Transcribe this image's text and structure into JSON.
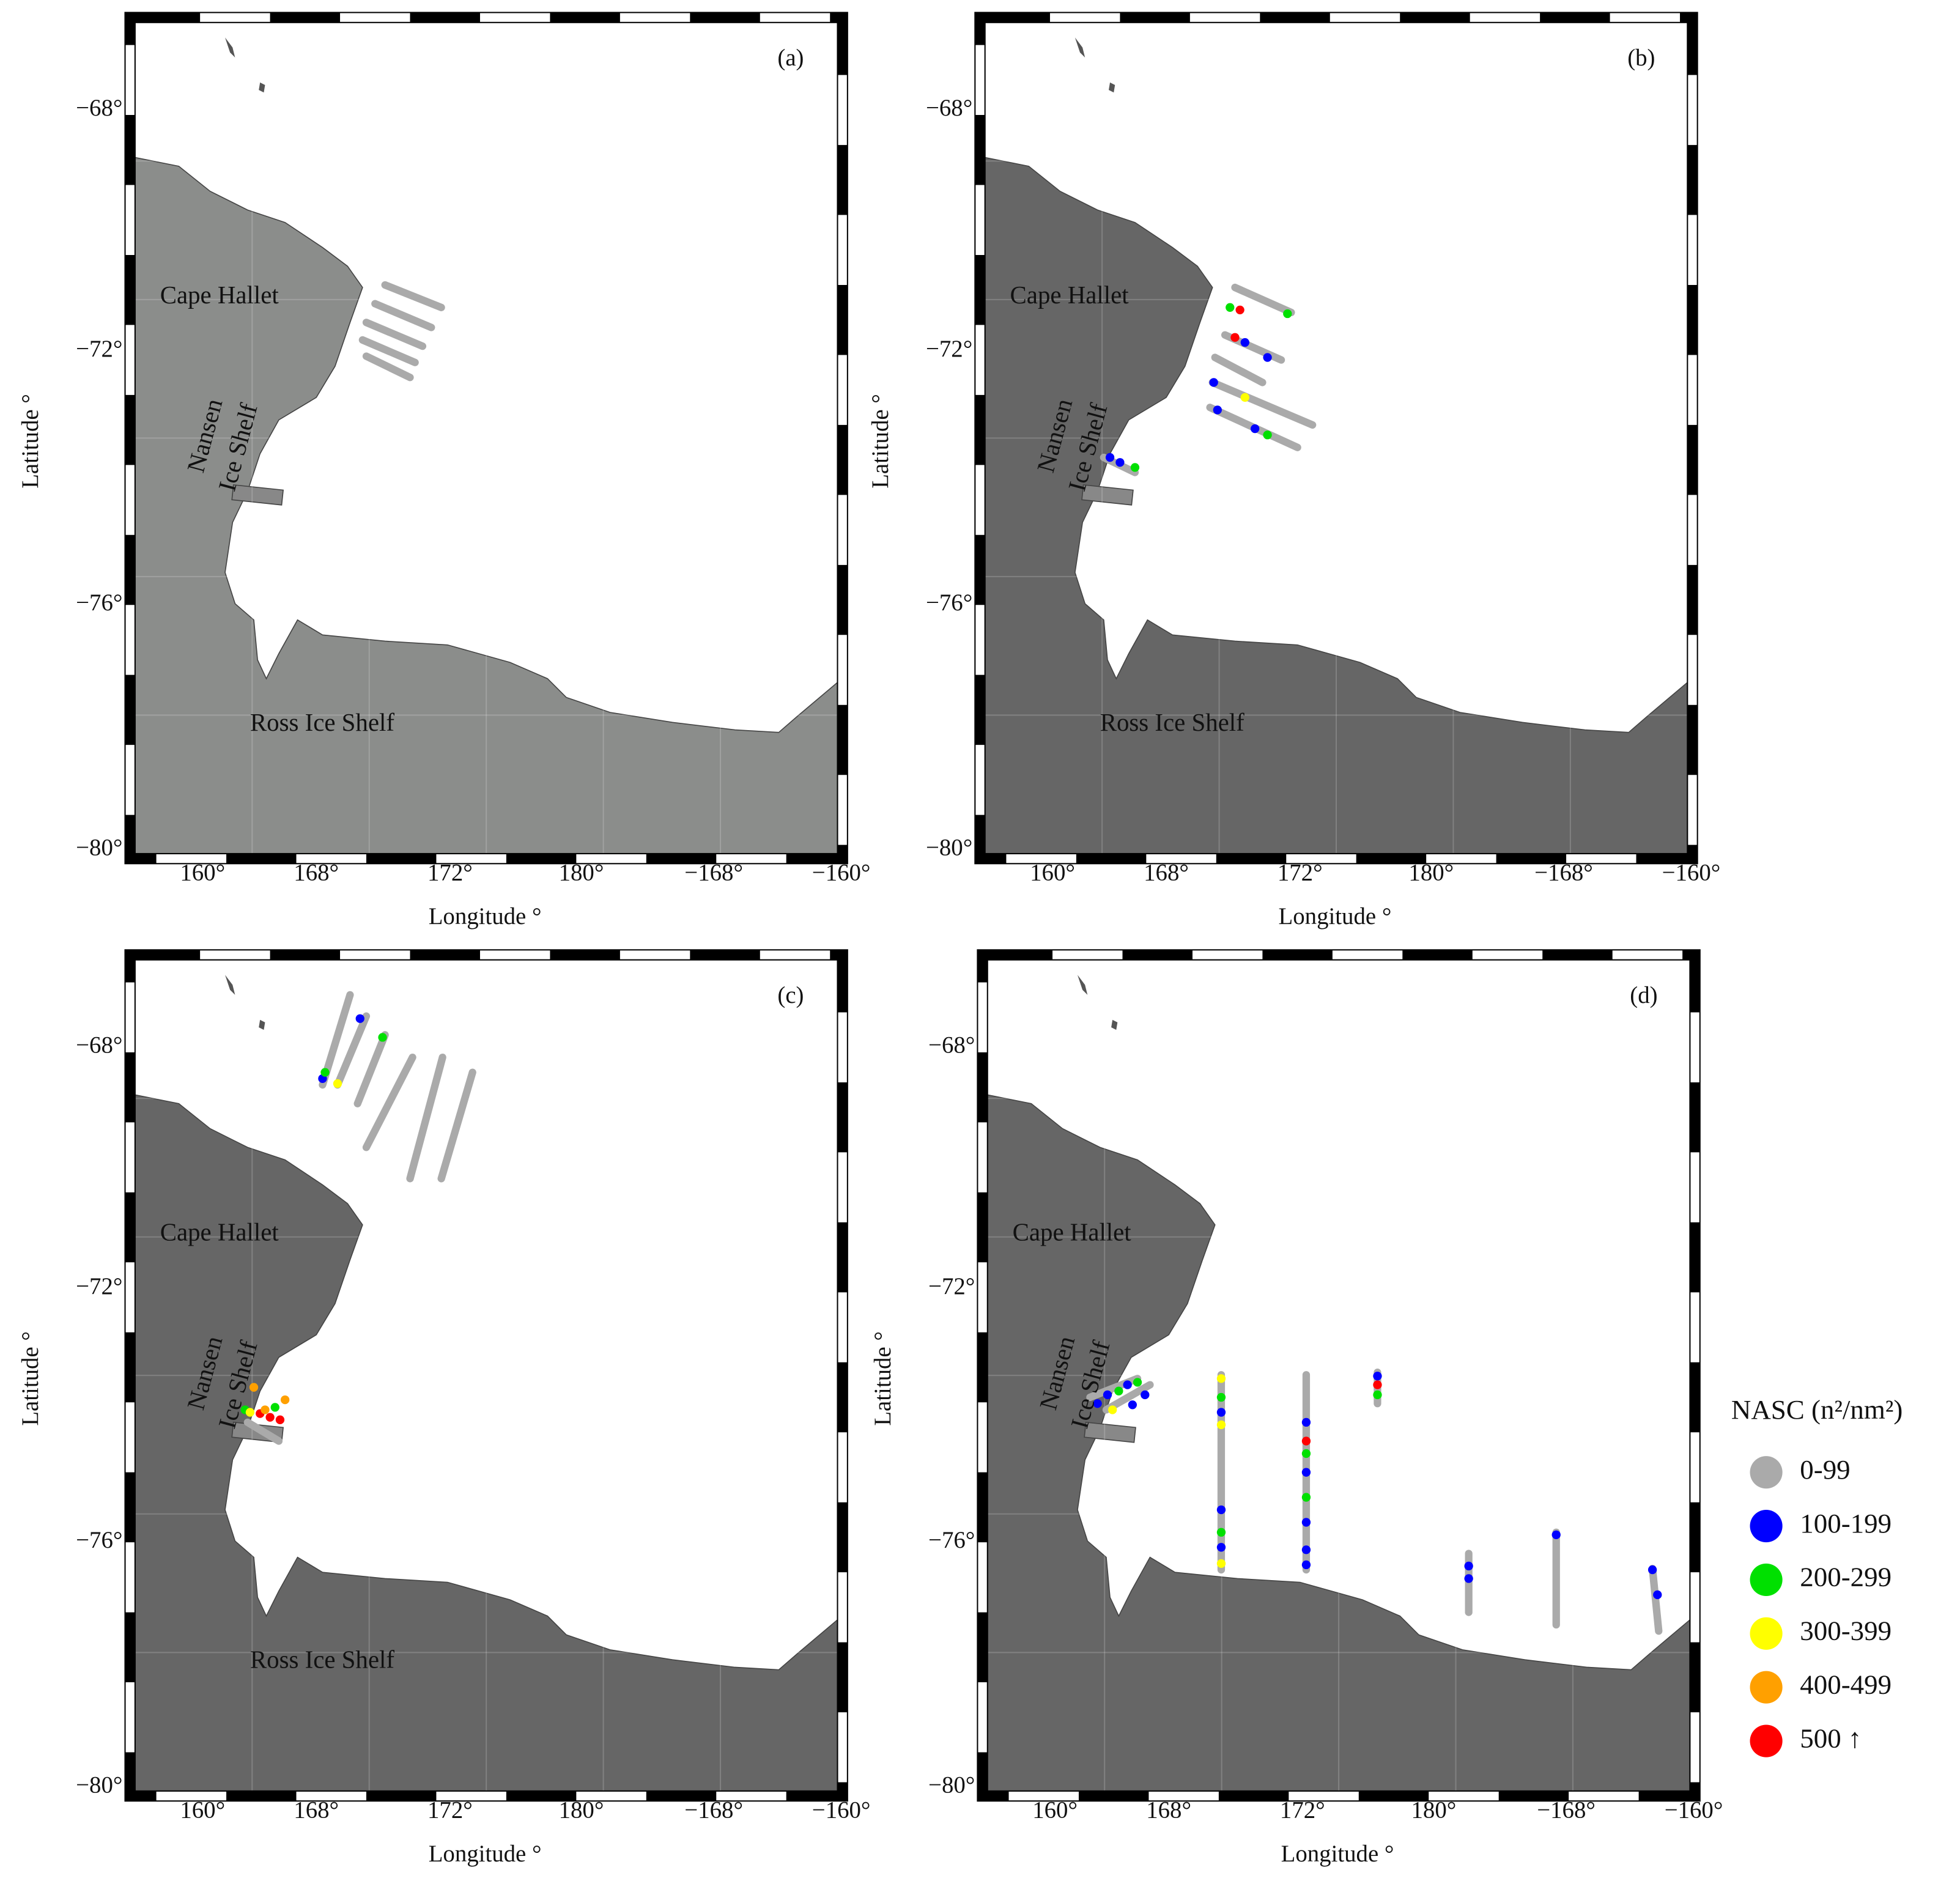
{
  "panels": [
    {
      "label": "(a)",
      "places": [
        "Cape Hallet",
        "Nansen",
        "Ice Shelf",
        "Ross Ice Shelf"
      ]
    },
    {
      "label": "(b)",
      "places": [
        "Cape Hallet",
        "Nansen",
        "Ice Shelf",
        "Ross Ice Shelf"
      ]
    },
    {
      "label": "(c)",
      "places": [
        "Cape Hallet",
        "Nansen",
        "Ice Shelf",
        "Ross Ice Shelf"
      ]
    },
    {
      "label": "(d)",
      "places": [
        "Cape Hallet",
        "Nansen",
        "Ice Shelf"
      ]
    }
  ],
  "y_tick_labels": [
    "−68°",
    "−72°",
    "−76°",
    "−80°"
  ],
  "x_tick_labels": [
    "160°",
    "168°",
    "172°",
    "180°",
    "−168°",
    "−160°"
  ],
  "x_axis_label": "Longitude °",
  "y_axis_label": "Latitude °",
  "legend": {
    "title": "NASC (n²/nm²)",
    "entries": [
      "0-99",
      "100-199",
      "200-299",
      "300-399",
      "400-499",
      "500 ↑"
    ]
  }
}
